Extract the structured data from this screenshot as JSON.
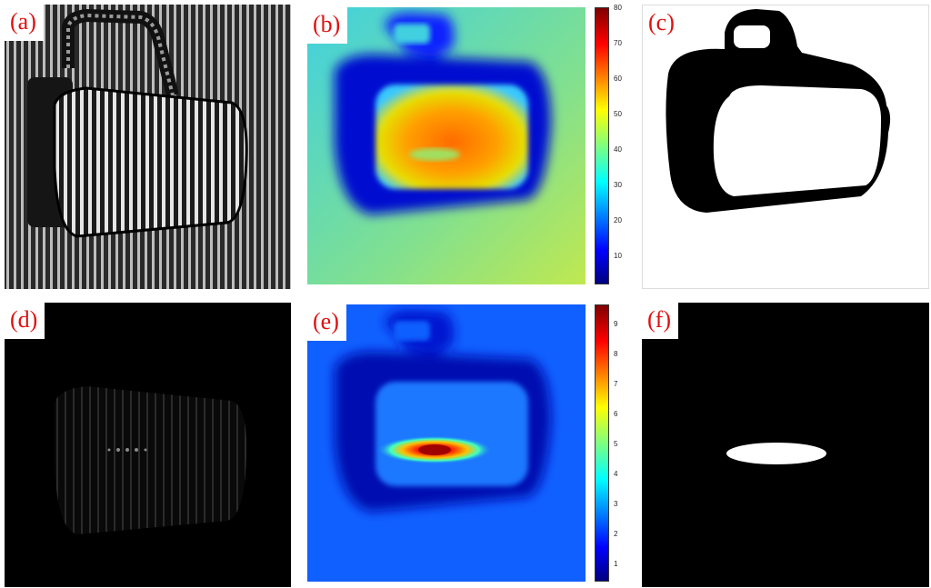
{
  "panels": [
    {
      "label": "(a)"
    },
    {
      "label": "(b)"
    },
    {
      "label": "(c)"
    },
    {
      "label": "(d)"
    },
    {
      "label": "(e)"
    },
    {
      "label": "(f)"
    }
  ],
  "colorbar_b": {
    "ticks": [
      "80",
      "70",
      "60",
      "50",
      "40",
      "30",
      "20",
      "10"
    ]
  },
  "colorbar_e": {
    "ticks": [
      "9",
      "8",
      "7",
      "6",
      "5",
      "4",
      "3",
      "2",
      "1"
    ]
  },
  "colors": {
    "label_red": "#e01010",
    "jet_low": "#00008f",
    "jet_high": "#800000"
  }
}
